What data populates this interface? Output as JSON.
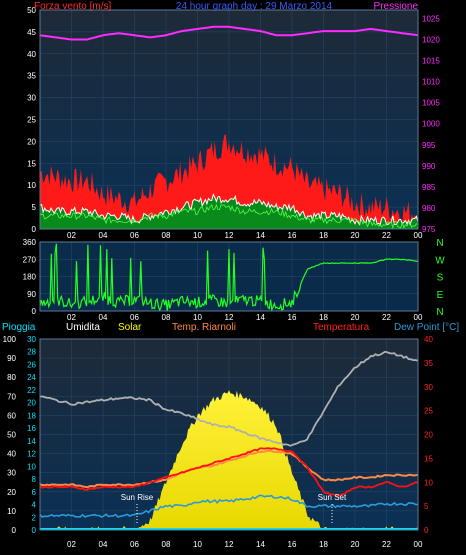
{
  "colors": {
    "background": "#000000",
    "panel_bg_top": "#1e2a38",
    "panel_bg_bottom": "#0a2a4a",
    "grid": "#2a4a6a",
    "wind_max": "#ff1a1a",
    "wind_avg": "#0a8a1a",
    "wind_line": "#ffffff",
    "pressure": "#ff2aff",
    "direction": "#22ff22",
    "rain": "#00e0ff",
    "humidity": "#b0b0b0",
    "solar": "#ffff00",
    "heat_index": "#ff8844",
    "temperature": "#ff1010",
    "dew_point": "#2a9ad8",
    "sun_marker": "#ffffff"
  },
  "panel1": {
    "left_title": "Forza vento [m/s]",
    "center_title": "24 hour graph day : 29 Marzo 2014",
    "right_title": "Pressione",
    "left_axis": [
      "0",
      "5",
      "10",
      "15",
      "20",
      "25",
      "30",
      "35",
      "40",
      "45",
      "50"
    ],
    "right_axis": [
      "975",
      "980",
      "985",
      "990",
      "995",
      "1000",
      "1005",
      "1010",
      "1015",
      "1020",
      "1025"
    ]
  },
  "panel2": {
    "left_axis": [
      "0",
      "90",
      "180",
      "270",
      "360"
    ],
    "compass": [
      "N",
      "W",
      "S",
      "E",
      "N"
    ]
  },
  "panel3": {
    "headers": {
      "rain": "Pioggia",
      "humidity": "Umidita",
      "solar": "Solar",
      "heat": "Temp. Riarnoli",
      "temp": "Temperatura",
      "dew": "Dew Point [°C]"
    },
    "humidity_axis": [
      "0",
      "10",
      "20",
      "30",
      "40",
      "50",
      "60",
      "70",
      "80",
      "90",
      "100"
    ],
    "rain_axis": [
      "0",
      "2",
      "4",
      "6",
      "8",
      "10",
      "12",
      "14",
      "16",
      "18",
      "20",
      "22",
      "24",
      "26",
      "28",
      "30"
    ],
    "temp_axis": [
      "0",
      "5",
      "10",
      "15",
      "20",
      "25",
      "30",
      "35",
      "40"
    ],
    "sun_rise_label": "Sun Rise",
    "sun_set_label": "Sun Set"
  },
  "x_ticks": [
    "02",
    "04",
    "06",
    "08",
    "10",
    "12",
    "14",
    "16",
    "18",
    "20",
    "22",
    "00"
  ],
  "chart_data": [
    {
      "type": "area",
      "title": "24 hour graph day : 29 Marzo 2014",
      "xlabel": "",
      "ylabel": "Forza vento [m/s]",
      "y2label": "Pressione",
      "x": [
        0,
        1,
        2,
        3,
        4,
        5,
        6,
        7,
        8,
        9,
        10,
        11,
        12,
        13,
        14,
        15,
        16,
        17,
        18,
        19,
        20,
        21,
        22,
        23,
        24
      ],
      "ylim": [
        0,
        50
      ],
      "y2lim": [
        975,
        1027
      ],
      "series": [
        {
          "name": "Forza vento",
          "values": [
            13,
            12,
            11,
            11,
            8,
            7,
            6,
            9,
            11,
            13,
            15,
            18,
            20,
            18,
            17,
            15,
            14,
            10,
            9,
            8,
            6,
            5,
            5,
            4,
            4
          ]
        },
        {
          "values": [
            5,
            4,
            4,
            4,
            3,
            3,
            2,
            3,
            4,
            5,
            6,
            7,
            7,
            6,
            6,
            5,
            5,
            3,
            3,
            3,
            2,
            2,
            2,
            2,
            2
          ]
        },
        {
          "values": [
            3,
            3,
            3,
            3,
            2,
            2,
            2,
            3,
            3,
            4,
            4,
            5,
            5,
            4,
            4,
            4,
            3,
            2,
            2,
            2,
            2,
            1,
            1,
            1,
            1
          ]
        },
        {
          "name": "Pressione",
          "values": [
            1021,
            1020.5,
            1020,
            1020,
            1021,
            1021.5,
            1021,
            1020.5,
            1021,
            1022,
            1022.5,
            1023,
            1023,
            1022.5,
            1022,
            1021,
            1021,
            1021.5,
            1022,
            1022,
            1022,
            1022.5,
            1022,
            1021.5,
            1021
          ]
        }
      ]
    },
    {
      "type": "line",
      "xlabel": "",
      "ylabel": "",
      "x": [
        0,
        1,
        2,
        3,
        4,
        5,
        6,
        7,
        8,
        9,
        10,
        11,
        12,
        13,
        14,
        15,
        16,
        17,
        18,
        19,
        20,
        21,
        22,
        23,
        24
      ],
      "ylim": [
        0,
        360
      ],
      "series": [
        {
          "values": [
            40,
            60,
            35,
            50,
            70,
            45,
            60,
            40,
            30,
            50,
            45,
            55,
            40,
            60,
            50,
            30,
            45,
            220,
            250,
            250,
            250,
            250,
            270,
            270,
            260
          ]
        }
      ]
    },
    {
      "type": "area",
      "xlabel": "",
      "ylabel": "Umidita",
      "y2label": "Temperatura",
      "x": [
        0,
        1,
        2,
        3,
        4,
        5,
        6,
        7,
        8,
        9,
        10,
        11,
        12,
        13,
        14,
        15,
        16,
        17,
        18,
        19,
        20,
        21,
        22,
        23,
        24
      ],
      "ylim": [
        0,
        100
      ],
      "y2lim": [
        0,
        40
      ],
      "series": [
        {
          "name": "Umidita",
          "values": [
            70,
            68,
            66,
            67,
            68,
            69,
            69,
            68,
            63,
            61,
            58,
            55,
            54,
            51,
            48,
            46,
            44,
            48,
            62,
            76,
            85,
            91,
            93,
            91,
            88
          ]
        },
        {
          "name": "Solar",
          "values": [
            0,
            0,
            0,
            0,
            0,
            0,
            0,
            5,
            25,
            45,
            60,
            68,
            72,
            70,
            65,
            55,
            30,
            8,
            0,
            0,
            0,
            0,
            0,
            0,
            0
          ]
        },
        {
          "name": "Temp. Riarnoli",
          "values": [
            9.5,
            9.5,
            9.5,
            9,
            9.5,
            9.5,
            9.5,
            10,
            10.5,
            12,
            13,
            13.5,
            14.5,
            15.5,
            16.5,
            16.5,
            16,
            13,
            10.5,
            10.5,
            11,
            11,
            11.5,
            11.5,
            11.5
          ]
        },
        {
          "name": "Temperatura",
          "values": [
            9,
            9,
            9,
            8.5,
            9,
            9,
            9,
            10,
            11,
            12,
            13,
            14,
            15,
            16,
            17,
            17,
            16.5,
            13,
            8,
            7,
            9,
            9,
            10,
            9,
            10
          ]
        },
        {
          "name": "Dew Point [°C]",
          "values": [
            3,
            3,
            3,
            3,
            3,
            3,
            3,
            4,
            5,
            5,
            6,
            6,
            6,
            6.5,
            7,
            7,
            6.5,
            5,
            5,
            5,
            5,
            5,
            5.5,
            5.5,
            5.5
          ]
        },
        {
          "name": "Pioggia",
          "values": [
            0,
            0,
            0,
            0,
            0,
            0,
            0,
            0,
            0,
            0,
            0,
            0,
            0,
            0,
            0,
            0,
            0,
            0,
            0,
            0,
            0,
            0,
            0,
            0,
            0
          ]
        }
      ]
    }
  ]
}
